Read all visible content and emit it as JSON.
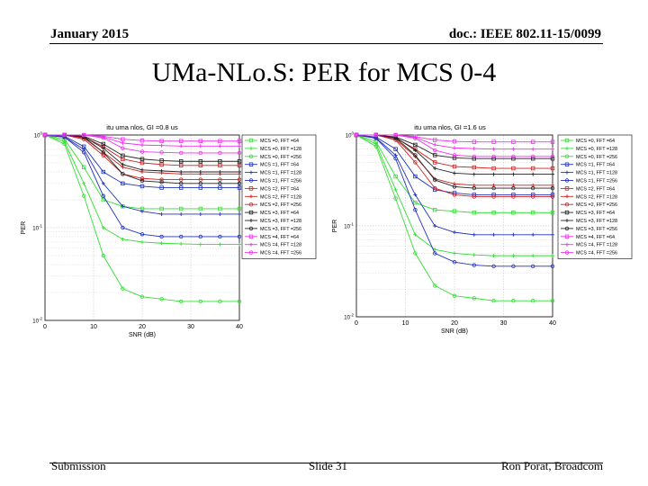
{
  "slide": {
    "header_left": "January 2015",
    "header_right": "doc.: IEEE 802.11-15/0099",
    "title": "UMa-NLo.S: PER for MCS 0-4",
    "footer_left": "Submission",
    "footer_mid": "Slide 31",
    "footer_right": "Ron Porat, Broadcom"
  },
  "colors": {
    "MCS0": "#33dd33",
    "MCS1": "#2233bb",
    "MCS2": "#cc2222",
    "MCS3": "#222222",
    "MCS4": "#ee33ee"
  },
  "chart_data": [
    {
      "type": "line",
      "title": "itu uma nlos, GI =0.8 us",
      "xlabel": "SNR (dB)",
      "ylabel": "PER",
      "y_scale": "log",
      "xlim": [
        0,
        40
      ],
      "ylim": [
        0.01,
        1
      ],
      "xticks": [
        "0",
        "10",
        "20",
        "30",
        "40"
      ],
      "yticks": [
        "10^0",
        "10^-1",
        "10^-2"
      ],
      "grid": true,
      "legend_position": "top-right",
      "series": [
        {
          "name": "MCS =0, FFT =64",
          "x": [
            0,
            4,
            8,
            12,
            16,
            20,
            24,
            28,
            32,
            36,
            40
          ],
          "y": [
            1.0,
            0.9,
            0.45,
            0.2,
            0.17,
            0.16,
            0.16,
            0.16,
            0.16,
            0.16,
            0.16
          ]
        },
        {
          "name": "MCS =0, FFT =128",
          "x": [
            0,
            4,
            8,
            12,
            16,
            20,
            24,
            28,
            32,
            36,
            40
          ],
          "y": [
            1.0,
            0.85,
            0.3,
            0.1,
            0.075,
            0.07,
            0.068,
            0.067,
            0.066,
            0.066,
            0.066
          ]
        },
        {
          "name": "MCS =0, FFT =256",
          "x": [
            0,
            4,
            8,
            12,
            16,
            20,
            24,
            28,
            32,
            36,
            40
          ],
          "y": [
            1.0,
            0.8,
            0.22,
            0.05,
            0.022,
            0.018,
            0.017,
            0.016,
            0.016,
            0.016,
            0.016
          ]
        },
        {
          "name": "MCS =1, FFT =64",
          "x": [
            0,
            4,
            8,
            12,
            16,
            20,
            24,
            28,
            32,
            36,
            40
          ],
          "y": [
            1.0,
            0.97,
            0.75,
            0.4,
            0.3,
            0.28,
            0.27,
            0.27,
            0.27,
            0.27,
            0.27
          ]
        },
        {
          "name": "MCS =1, FFT =128",
          "x": [
            0,
            4,
            8,
            12,
            16,
            20,
            24,
            28,
            32,
            36,
            40
          ],
          "y": [
            1.0,
            0.95,
            0.7,
            0.3,
            0.17,
            0.15,
            0.14,
            0.14,
            0.14,
            0.14,
            0.14
          ]
        },
        {
          "name": "MCS =1, FFT =256",
          "x": [
            0,
            4,
            8,
            12,
            16,
            20,
            24,
            28,
            32,
            36,
            40
          ],
          "y": [
            1.0,
            0.95,
            0.65,
            0.22,
            0.1,
            0.085,
            0.08,
            0.08,
            0.08,
            0.08,
            0.08
          ]
        },
        {
          "name": "MCS =2, FFT =64",
          "x": [
            0,
            4,
            8,
            12,
            16,
            20,
            24,
            28,
            32,
            36,
            40
          ],
          "y": [
            1.0,
            1.0,
            0.95,
            0.75,
            0.55,
            0.5,
            0.48,
            0.47,
            0.47,
            0.47,
            0.47
          ]
        },
        {
          "name": "MCS =2, FFT =128",
          "x": [
            0,
            4,
            8,
            12,
            16,
            20,
            24,
            28,
            32,
            36,
            40
          ],
          "y": [
            1.0,
            1.0,
            0.93,
            0.65,
            0.45,
            0.4,
            0.39,
            0.38,
            0.38,
            0.38,
            0.38
          ]
        },
        {
          "name": "MCS =2, FFT =256",
          "x": [
            0,
            4,
            8,
            12,
            16,
            20,
            24,
            28,
            32,
            36,
            40
          ],
          "y": [
            1.0,
            1.0,
            0.9,
            0.6,
            0.38,
            0.34,
            0.33,
            0.33,
            0.33,
            0.33,
            0.33
          ]
        },
        {
          "name": "MCS =3, FFT =64",
          "x": [
            0,
            4,
            8,
            12,
            16,
            20,
            24,
            28,
            32,
            36,
            40
          ],
          "y": [
            1.0,
            1.0,
            0.97,
            0.8,
            0.6,
            0.55,
            0.53,
            0.52,
            0.52,
            0.52,
            0.52
          ]
        },
        {
          "name": "MCS =3, FFT =128",
          "x": [
            0,
            4,
            8,
            12,
            16,
            20,
            24,
            28,
            32,
            36,
            40
          ],
          "y": [
            1.0,
            1.0,
            0.96,
            0.72,
            0.48,
            0.42,
            0.41,
            0.4,
            0.4,
            0.4,
            0.4
          ]
        },
        {
          "name": "MCS =3, FFT =256",
          "x": [
            0,
            4,
            8,
            12,
            16,
            20,
            24,
            28,
            32,
            36,
            40
          ],
          "y": [
            1.0,
            1.0,
            0.95,
            0.65,
            0.38,
            0.32,
            0.31,
            0.3,
            0.3,
            0.3,
            0.3
          ]
        },
        {
          "name": "MCS =4, FFT =64",
          "x": [
            0,
            4,
            8,
            12,
            16,
            20,
            24,
            28,
            32,
            36,
            40
          ],
          "y": [
            1.0,
            1.0,
            1.0,
            0.97,
            0.9,
            0.87,
            0.86,
            0.86,
            0.86,
            0.86,
            0.86
          ]
        },
        {
          "name": "MCS =4, FFT =128",
          "x": [
            0,
            4,
            8,
            12,
            16,
            20,
            24,
            28,
            32,
            36,
            40
          ],
          "y": [
            1.0,
            1.0,
            1.0,
            0.95,
            0.82,
            0.78,
            0.77,
            0.76,
            0.76,
            0.76,
            0.76
          ]
        },
        {
          "name": "MCS =4, FFT =256",
          "x": [
            0,
            4,
            8,
            12,
            16,
            20,
            24,
            28,
            32,
            36,
            40
          ],
          "y": [
            1.0,
            1.0,
            1.0,
            0.93,
            0.72,
            0.66,
            0.65,
            0.64,
            0.64,
            0.64,
            0.64
          ]
        }
      ]
    },
    {
      "type": "line",
      "title": "itu uma nlos, GI =1.6 us",
      "xlabel": "SNR (dB)",
      "ylabel": "PER",
      "y_scale": "log",
      "xlim": [
        0,
        40
      ],
      "ylim": [
        0.01,
        1
      ],
      "xticks": [
        "0",
        "10",
        "20",
        "30",
        "40"
      ],
      "yticks": [
        "10^0",
        "10^-1",
        "10^-2"
      ],
      "grid": true,
      "legend_position": "top-right",
      "series": [
        {
          "name": "MCS =0, FFT =64",
          "x": [
            0,
            4,
            8,
            12,
            16,
            20,
            24,
            28,
            32,
            36,
            40
          ],
          "y": [
            1.0,
            0.85,
            0.35,
            0.18,
            0.15,
            0.145,
            0.14,
            0.14,
            0.14,
            0.14,
            0.14
          ]
        },
        {
          "name": "MCS =0, FFT =128",
          "x": [
            0,
            4,
            8,
            12,
            16,
            20,
            24,
            28,
            32,
            36,
            40
          ],
          "y": [
            1.0,
            0.8,
            0.25,
            0.08,
            0.055,
            0.05,
            0.048,
            0.047,
            0.047,
            0.047,
            0.047
          ]
        },
        {
          "name": "MCS =0, FFT =256",
          "x": [
            0,
            4,
            8,
            12,
            16,
            20,
            24,
            28,
            32,
            36,
            40
          ],
          "y": [
            1.0,
            0.75,
            0.2,
            0.05,
            0.022,
            0.017,
            0.016,
            0.015,
            0.015,
            0.015,
            0.015
          ]
        },
        {
          "name": "MCS =1, FFT =64",
          "x": [
            0,
            4,
            8,
            12,
            16,
            20,
            24,
            28,
            32,
            36,
            40
          ],
          "y": [
            1.0,
            0.95,
            0.7,
            0.35,
            0.25,
            0.23,
            0.22,
            0.22,
            0.22,
            0.22,
            0.22
          ]
        },
        {
          "name": "MCS =1, FFT =128",
          "x": [
            0,
            4,
            8,
            12,
            16,
            20,
            24,
            28,
            32,
            36,
            40
          ],
          "y": [
            1.0,
            0.93,
            0.6,
            0.22,
            0.1,
            0.085,
            0.08,
            0.08,
            0.08,
            0.08,
            0.08
          ]
        },
        {
          "name": "MCS =1, FFT =256",
          "x": [
            0,
            4,
            8,
            12,
            16,
            20,
            24,
            28,
            32,
            36,
            40
          ],
          "y": [
            1.0,
            0.92,
            0.55,
            0.15,
            0.05,
            0.04,
            0.037,
            0.036,
            0.036,
            0.036,
            0.036
          ]
        },
        {
          "name": "MCS =2, FFT =64",
          "x": [
            0,
            4,
            8,
            12,
            16,
            20,
            24,
            28,
            32,
            36,
            40
          ],
          "y": [
            1.0,
            1.0,
            0.93,
            0.7,
            0.5,
            0.45,
            0.44,
            0.43,
            0.43,
            0.43,
            0.43
          ]
        },
        {
          "name": "MCS =2, FFT =128",
          "x": [
            0,
            4,
            8,
            12,
            16,
            20,
            24,
            28,
            32,
            36,
            40
          ],
          "y": [
            1.0,
            1.0,
            0.9,
            0.58,
            0.33,
            0.29,
            0.28,
            0.28,
            0.28,
            0.28,
            0.28
          ]
        },
        {
          "name": "MCS =2, FFT =256",
          "x": [
            0,
            4,
            8,
            12,
            16,
            20,
            24,
            28,
            32,
            36,
            40
          ],
          "y": [
            1.0,
            1.0,
            0.88,
            0.5,
            0.26,
            0.22,
            0.21,
            0.21,
            0.21,
            0.21,
            0.21
          ]
        },
        {
          "name": "MCS =3, FFT =64",
          "x": [
            0,
            4,
            8,
            12,
            16,
            20,
            24,
            28,
            32,
            36,
            40
          ],
          "y": [
            1.0,
            1.0,
            0.95,
            0.78,
            0.6,
            0.56,
            0.55,
            0.55,
            0.55,
            0.55,
            0.55
          ]
        },
        {
          "name": "MCS =3, FFT =128",
          "x": [
            0,
            4,
            8,
            12,
            16,
            20,
            24,
            28,
            32,
            36,
            40
          ],
          "y": [
            1.0,
            1.0,
            0.94,
            0.68,
            0.43,
            0.38,
            0.37,
            0.37,
            0.37,
            0.37,
            0.37
          ]
        },
        {
          "name": "MCS =3, FFT =256",
          "x": [
            0,
            4,
            8,
            12,
            16,
            20,
            24,
            28,
            32,
            36,
            40
          ],
          "y": [
            1.0,
            1.0,
            0.93,
            0.6,
            0.32,
            0.27,
            0.26,
            0.26,
            0.26,
            0.26,
            0.26
          ]
        },
        {
          "name": "MCS =4, FFT =64",
          "x": [
            0,
            4,
            8,
            12,
            16,
            20,
            24,
            28,
            32,
            36,
            40
          ],
          "y": [
            1.0,
            1.0,
            1.0,
            0.96,
            0.88,
            0.85,
            0.84,
            0.84,
            0.84,
            0.84,
            0.84
          ]
        },
        {
          "name": "MCS =4, FFT =128",
          "x": [
            0,
            4,
            8,
            12,
            16,
            20,
            24,
            28,
            32,
            36,
            40
          ],
          "y": [
            1.0,
            1.0,
            1.0,
            0.94,
            0.78,
            0.72,
            0.71,
            0.7,
            0.7,
            0.7,
            0.7
          ]
        },
        {
          "name": "MCS =4, FFT =256",
          "x": [
            0,
            4,
            8,
            12,
            16,
            20,
            24,
            28,
            32,
            36,
            40
          ],
          "y": [
            1.0,
            1.0,
            1.0,
            0.92,
            0.68,
            0.6,
            0.58,
            0.58,
            0.58,
            0.58,
            0.58
          ]
        }
      ]
    }
  ]
}
